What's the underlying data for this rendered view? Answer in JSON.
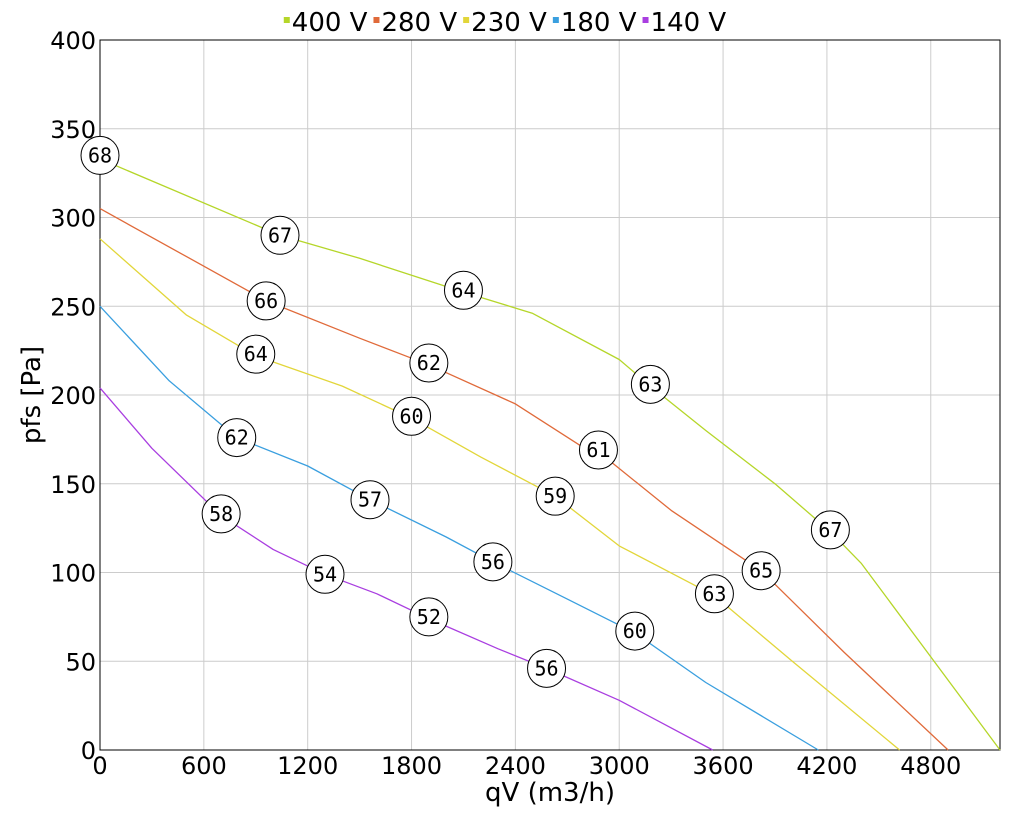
{
  "chart_data": {
    "type": "line",
    "xlabel": "qV (m3/h)",
    "ylabel": "pfs [Pa]",
    "xlim": [
      0,
      5200
    ],
    "ylim": [
      0,
      400
    ],
    "x_ticks": [
      "0",
      "600",
      "1200",
      "1800",
      "2400",
      "3000",
      "3600",
      "4200",
      "4800"
    ],
    "y_ticks": [
      "0",
      "50",
      "100",
      "150",
      "200",
      "250",
      "300",
      "350",
      "400"
    ],
    "grid": true,
    "legend_position": "top",
    "series": [
      {
        "name": "400 V",
        "color": "#b5d629",
        "points": [
          [
            0,
            333
          ],
          [
            1040,
            290
          ],
          [
            1500,
            277
          ],
          [
            2100,
            258
          ],
          [
            2500,
            246
          ],
          [
            3000,
            220
          ],
          [
            3180,
            205
          ],
          [
            3500,
            180
          ],
          [
            3900,
            150
          ],
          [
            4220,
            123
          ],
          [
            4400,
            105
          ],
          [
            5200,
            0
          ]
        ],
        "labels": [
          {
            "x": 0,
            "y": 335,
            "text": "68"
          },
          {
            "x": 1040,
            "y": 290,
            "text": "67"
          },
          {
            "x": 2100,
            "y": 259,
            "text": "64"
          },
          {
            "x": 3180,
            "y": 206,
            "text": "63"
          },
          {
            "x": 4220,
            "y": 124,
            "text": "67"
          }
        ]
      },
      {
        "name": "280 V",
        "color": "#e06a3a",
        "points": [
          [
            0,
            305
          ],
          [
            500,
            278
          ],
          [
            960,
            253
          ],
          [
            1500,
            232
          ],
          [
            1900,
            217
          ],
          [
            2400,
            195
          ],
          [
            2800,
            170
          ],
          [
            2880,
            168
          ],
          [
            3300,
            135
          ],
          [
            3820,
            101
          ],
          [
            4300,
            55
          ],
          [
            4900,
            0
          ]
        ],
        "labels": [
          {
            "x": 960,
            "y": 253,
            "text": "66"
          },
          {
            "x": 1900,
            "y": 218,
            "text": "62"
          },
          {
            "x": 2880,
            "y": 169,
            "text": "61"
          },
          {
            "x": 3820,
            "y": 101,
            "text": "65"
          }
        ]
      },
      {
        "name": "230 V",
        "color": "#e2d63a",
        "points": [
          [
            0,
            288
          ],
          [
            500,
            245
          ],
          [
            900,
            222
          ],
          [
            1400,
            205
          ],
          [
            1800,
            187
          ],
          [
            2200,
            165
          ],
          [
            2630,
            143
          ],
          [
            3000,
            115
          ],
          [
            3550,
            87
          ],
          [
            4000,
            50
          ],
          [
            4620,
            0
          ]
        ],
        "labels": [
          {
            "x": 900,
            "y": 223,
            "text": "64"
          },
          {
            "x": 1800,
            "y": 188,
            "text": "60"
          },
          {
            "x": 2630,
            "y": 143,
            "text": "59"
          },
          {
            "x": 3550,
            "y": 88,
            "text": "63"
          }
        ]
      },
      {
        "name": "180 V",
        "color": "#3a9fdf",
        "points": [
          [
            0,
            250
          ],
          [
            400,
            208
          ],
          [
            790,
            176
          ],
          [
            1200,
            160
          ],
          [
            1560,
            141
          ],
          [
            2000,
            120
          ],
          [
            2270,
            106
          ],
          [
            2700,
            85
          ],
          [
            3090,
            66
          ],
          [
            3500,
            38
          ],
          [
            4150,
            0
          ]
        ],
        "labels": [
          {
            "x": 790,
            "y": 176,
            "text": "62"
          },
          {
            "x": 1560,
            "y": 141,
            "text": "57"
          },
          {
            "x": 2270,
            "y": 106,
            "text": "56"
          },
          {
            "x": 3090,
            "y": 67,
            "text": "60"
          }
        ]
      },
      {
        "name": "140 V",
        "color": "#a93ee0",
        "points": [
          [
            0,
            204
          ],
          [
            300,
            170
          ],
          [
            700,
            132
          ],
          [
            1000,
            113
          ],
          [
            1300,
            99
          ],
          [
            1600,
            88
          ],
          [
            1900,
            74
          ],
          [
            2300,
            57
          ],
          [
            2580,
            46
          ],
          [
            3000,
            28
          ],
          [
            3540,
            0
          ]
        ],
        "labels": [
          {
            "x": 700,
            "y": 133,
            "text": "58"
          },
          {
            "x": 1300,
            "y": 99,
            "text": "54"
          },
          {
            "x": 1900,
            "y": 75,
            "text": "52"
          },
          {
            "x": 2580,
            "y": 46,
            "text": "56"
          }
        ]
      }
    ]
  }
}
